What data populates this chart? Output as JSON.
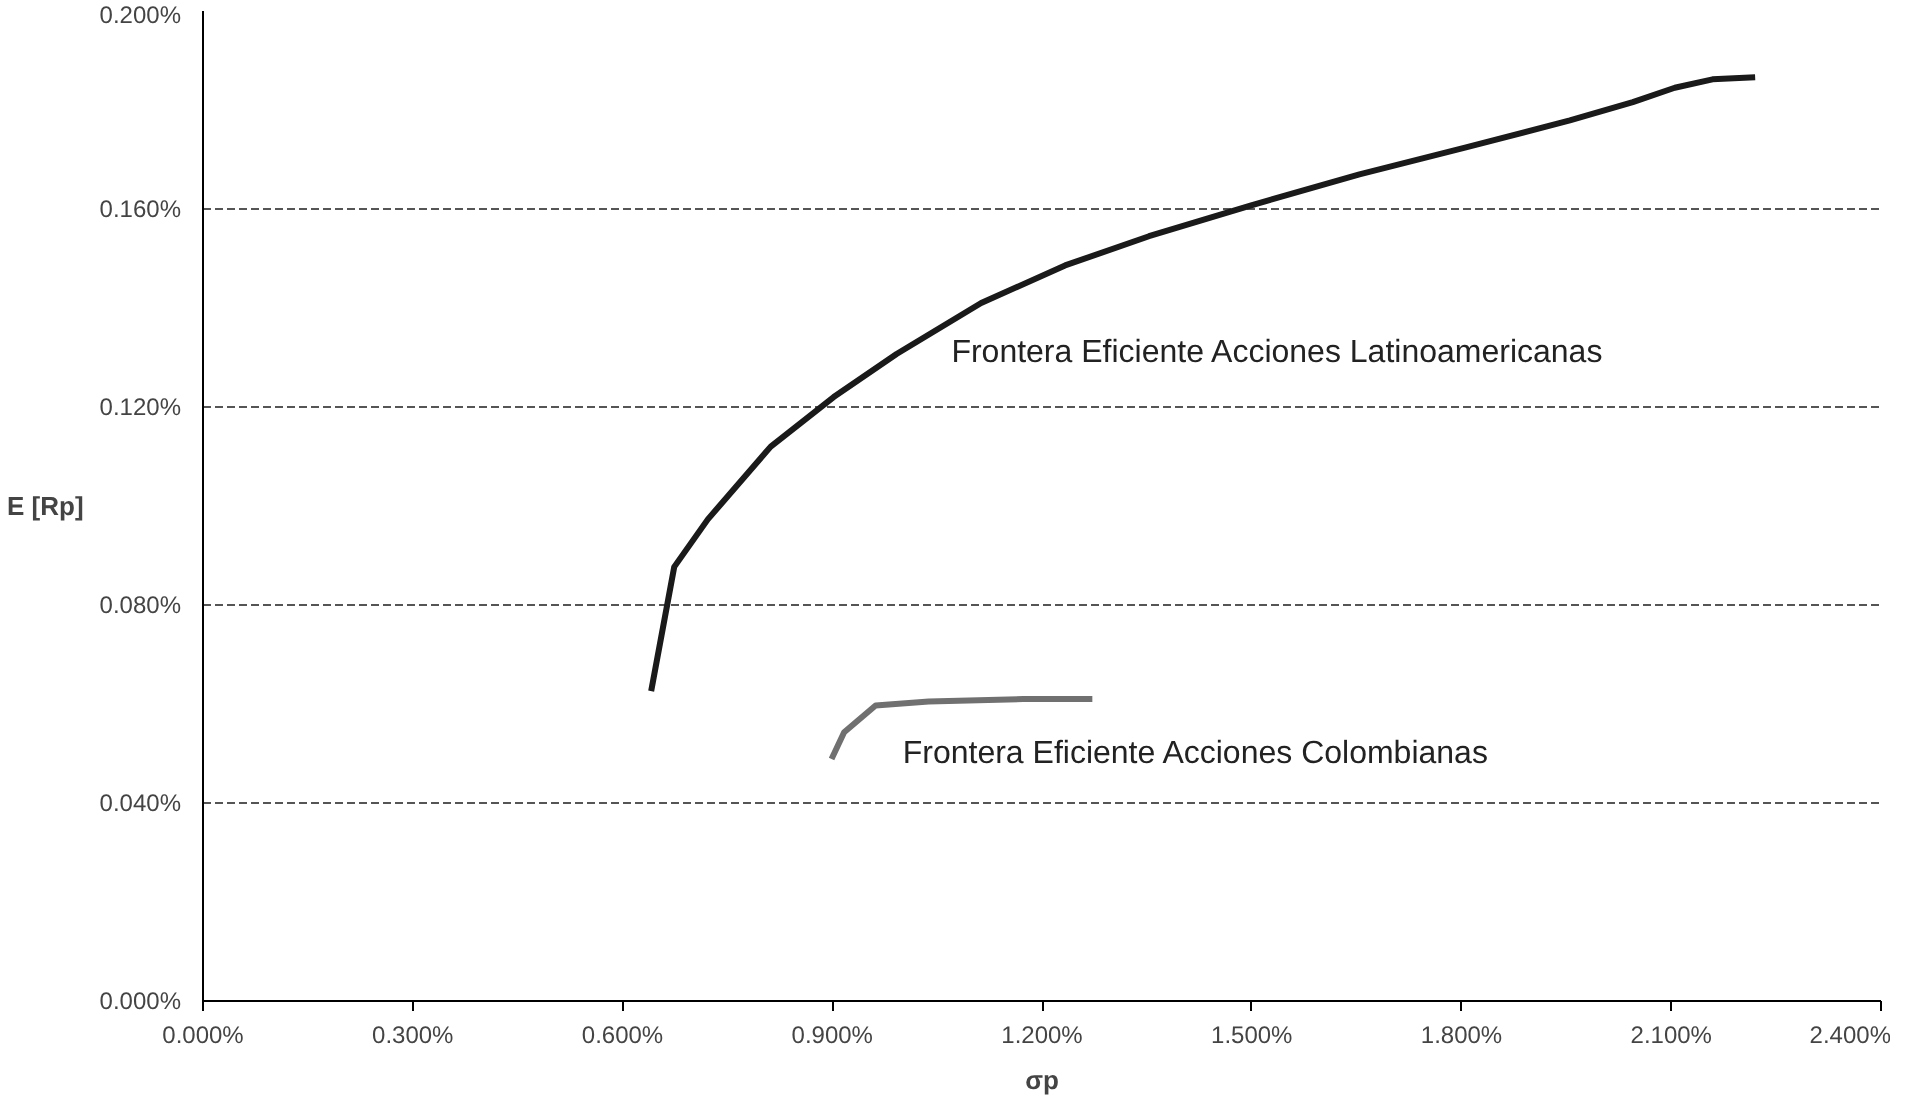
{
  "chart_data": {
    "type": "line",
    "xlabel": "σp",
    "ylabel": "E [Rp]",
    "xlim": [
      0,
      2.4
    ],
    "ylim": [
      0,
      0.2
    ],
    "xticks": [
      {
        "value": 0,
        "label": "0.000%"
      },
      {
        "value": 0.3,
        "label": "0.300%"
      },
      {
        "value": 0.6,
        "label": "0.600%"
      },
      {
        "value": 0.9,
        "label": "0.900%"
      },
      {
        "value": 1.2,
        "label": "1.200%"
      },
      {
        "value": 1.5,
        "label": "1.500%"
      },
      {
        "value": 1.8,
        "label": "1.800%"
      },
      {
        "value": 2.1,
        "label": "2.100%"
      },
      {
        "value": 2.4,
        "label": "2.400%"
      }
    ],
    "yticks": [
      {
        "value": 0,
        "label": "0.000%"
      },
      {
        "value": 0.04,
        "label": "0.040%"
      },
      {
        "value": 0.08,
        "label": "0.080%"
      },
      {
        "value": 0.12,
        "label": "0.120%"
      },
      {
        "value": 0.16,
        "label": "0.160%"
      },
      {
        "value": 0.2,
        "label": "0.200%"
      }
    ],
    "grid": "y",
    "marker": "none",
    "line_style": "solid",
    "series": [
      {
        "name": "Frontera Eficiente Acciones Latinoamericanas",
        "color": "#1a1a1a",
        "x": [
          0.641,
          0.674,
          0.722,
          0.812,
          0.902,
          0.992,
          1.113,
          1.233,
          1.353,
          1.498,
          1.654,
          1.805,
          1.955,
          2.045,
          2.105,
          2.159,
          2.22
        ],
        "values": [
          0.0626,
          0.0877,
          0.0973,
          0.112,
          0.122,
          0.1307,
          0.141,
          0.1486,
          0.1545,
          0.1607,
          0.167,
          0.1724,
          0.1779,
          0.1816,
          0.1845,
          0.1862,
          0.1866
        ]
      },
      {
        "name": "Frontera Eficiente Acciones Colombianas",
        "color": "#707070",
        "x": [
          0.899,
          0.917,
          0.962,
          1.038,
          1.173,
          1.272
        ],
        "values": [
          0.0489,
          0.0543,
          0.0597,
          0.0605,
          0.061,
          0.061
        ]
      }
    ]
  }
}
